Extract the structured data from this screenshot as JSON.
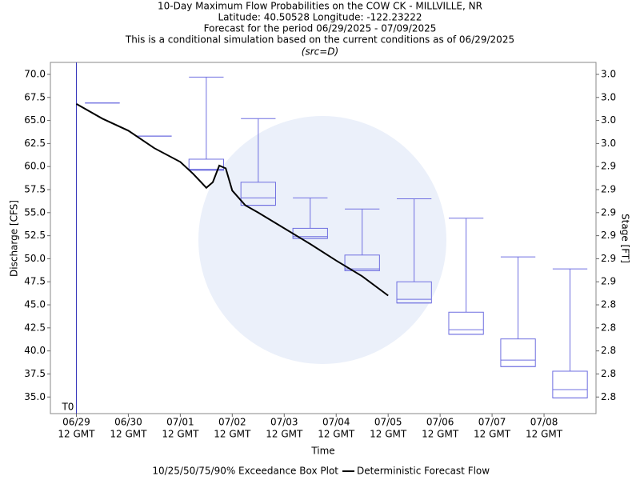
{
  "chart_data": {
    "type": "box",
    "title": [
      "10-Day Maximum Flow Probabilities on the COW CK - MILLVILLE, NR",
      "Latitude: 40.50528 Longitude: -122.23222",
      "Forecast for the period 06/29/2025 - 07/09/2025",
      "This is a conditional simulation based on the current conditions as of 06/29/2025"
    ],
    "subtitle": "(src=D)",
    "xlabel": "Time",
    "ylabel": "Discharge [CFS]",
    "y2label": "Stage [FT]",
    "t0": {
      "x": "06/29 12",
      "label": "T0"
    },
    "xlim": [
      "06/29 00",
      "07/09 12"
    ],
    "xticks": [
      {
        "value": "06/29 12",
        "label": "06/29",
        "sublabel": "12 GMT"
      },
      {
        "value": "06/30 12",
        "label": "06/30",
        "sublabel": "12 GMT"
      },
      {
        "value": "07/01 12",
        "label": "07/01",
        "sublabel": "12 GMT"
      },
      {
        "value": "07/02 12",
        "label": "07/02",
        "sublabel": "12 GMT"
      },
      {
        "value": "07/03 12",
        "label": "07/03",
        "sublabel": "12 GMT"
      },
      {
        "value": "07/04 12",
        "label": "07/04",
        "sublabel": "12 GMT"
      },
      {
        "value": "07/05 12",
        "label": "07/05",
        "sublabel": "12 GMT"
      },
      {
        "value": "07/06 12",
        "label": "07/06",
        "sublabel": "12 GMT"
      },
      {
        "value": "07/07 12",
        "label": "07/07",
        "sublabel": "12 GMT"
      },
      {
        "value": "07/08 12",
        "label": "07/08",
        "sublabel": "12 GMT"
      }
    ],
    "ylim": [
      33.2,
      71.3
    ],
    "yticks": [
      {
        "value": 70,
        "label": "70.0",
        "stage": "3.0"
      },
      {
        "value": 67.5,
        "label": "67.5",
        "stage": "3.0"
      },
      {
        "value": 65,
        "label": "65.0",
        "stage": "3.0"
      },
      {
        "value": 62.5,
        "label": "62.5",
        "stage": "3.0"
      },
      {
        "value": 60,
        "label": "60.0",
        "stage": "2.9"
      },
      {
        "value": 57.5,
        "label": "57.5",
        "stage": "2.9"
      },
      {
        "value": 55,
        "label": "55.0",
        "stage": "2.9"
      },
      {
        "value": 52.5,
        "label": "52.5",
        "stage": "2.9"
      },
      {
        "value": 50,
        "label": "50.0",
        "stage": "2.9"
      },
      {
        "value": 47.5,
        "label": "47.5",
        "stage": "2.9"
      },
      {
        "value": 45,
        "label": "45.0",
        "stage": "2.8"
      },
      {
        "value": 42.5,
        "label": "42.5",
        "stage": "2.8"
      },
      {
        "value": 40,
        "label": "40.0",
        "stage": "2.8"
      },
      {
        "value": 37.5,
        "label": "37.5",
        "stage": "2.8"
      },
      {
        "value": 35,
        "label": "35.0",
        "stage": "2.8"
      }
    ],
    "box_series": {
      "name": "10/25/50/75/90% Exceedance Box Plot",
      "color": "#6f6fe0",
      "boxes": [
        {
          "x": "06/30 00",
          "p10": 66.9,
          "p25": 66.9,
          "p50": 66.9,
          "p75": 66.9,
          "p90": 66.9
        },
        {
          "x": "07/01 00",
          "p10": 63.3,
          "p25": 63.3,
          "p50": 63.3,
          "p75": 63.3,
          "p90": 63.3
        },
        {
          "x": "07/02 00",
          "p10": 59.6,
          "p25": 59.6,
          "p50": 59.7,
          "p75": 60.8,
          "p90": 69.7
        },
        {
          "x": "07/03 00",
          "p10": 55.8,
          "p25": 55.8,
          "p50": 56.6,
          "p75": 58.3,
          "p90": 65.2
        },
        {
          "x": "07/04 00",
          "p10": 52.2,
          "p25": 52.2,
          "p50": 52.4,
          "p75": 53.3,
          "p90": 56.6
        },
        {
          "x": "07/05 00",
          "p10": 48.7,
          "p25": 48.7,
          "p50": 48.9,
          "p75": 50.4,
          "p90": 55.4
        },
        {
          "x": "07/06 00",
          "p10": 45.2,
          "p25": 45.2,
          "p50": 45.6,
          "p75": 47.5,
          "p90": 56.5
        },
        {
          "x": "07/07 00",
          "p10": 41.8,
          "p25": 41.8,
          "p50": 42.3,
          "p75": 44.2,
          "p90": 54.4
        },
        {
          "x": "07/08 00",
          "p10": 38.3,
          "p25": 38.3,
          "p50": 39.0,
          "p75": 41.3,
          "p90": 50.2
        },
        {
          "x": "07/09 00",
          "p10": 34.9,
          "p25": 34.9,
          "p50": 35.8,
          "p75": 37.8,
          "p90": 48.9
        }
      ]
    },
    "series": [
      {
        "name": "Deterministic Forecast Flow",
        "color": "#000000",
        "x": [
          "06/29 12",
          "06/30 00",
          "06/30 12",
          "07/01 00",
          "07/01 12",
          "07/01 18",
          "07/02 00",
          "07/02 03",
          "07/02 06",
          "07/02 09",
          "07/02 12",
          "07/02 18",
          "07/03 00",
          "07/03 12",
          "07/04 00",
          "07/04 12",
          "07/05 00",
          "07/05 12"
        ],
        "values": [
          66.8,
          65.2,
          63.9,
          62.0,
          60.5,
          59.2,
          57.7,
          58.3,
          60.1,
          59.8,
          57.4,
          55.8,
          55.0,
          53.3,
          51.6,
          49.8,
          48.1,
          46.0
        ]
      }
    ]
  }
}
